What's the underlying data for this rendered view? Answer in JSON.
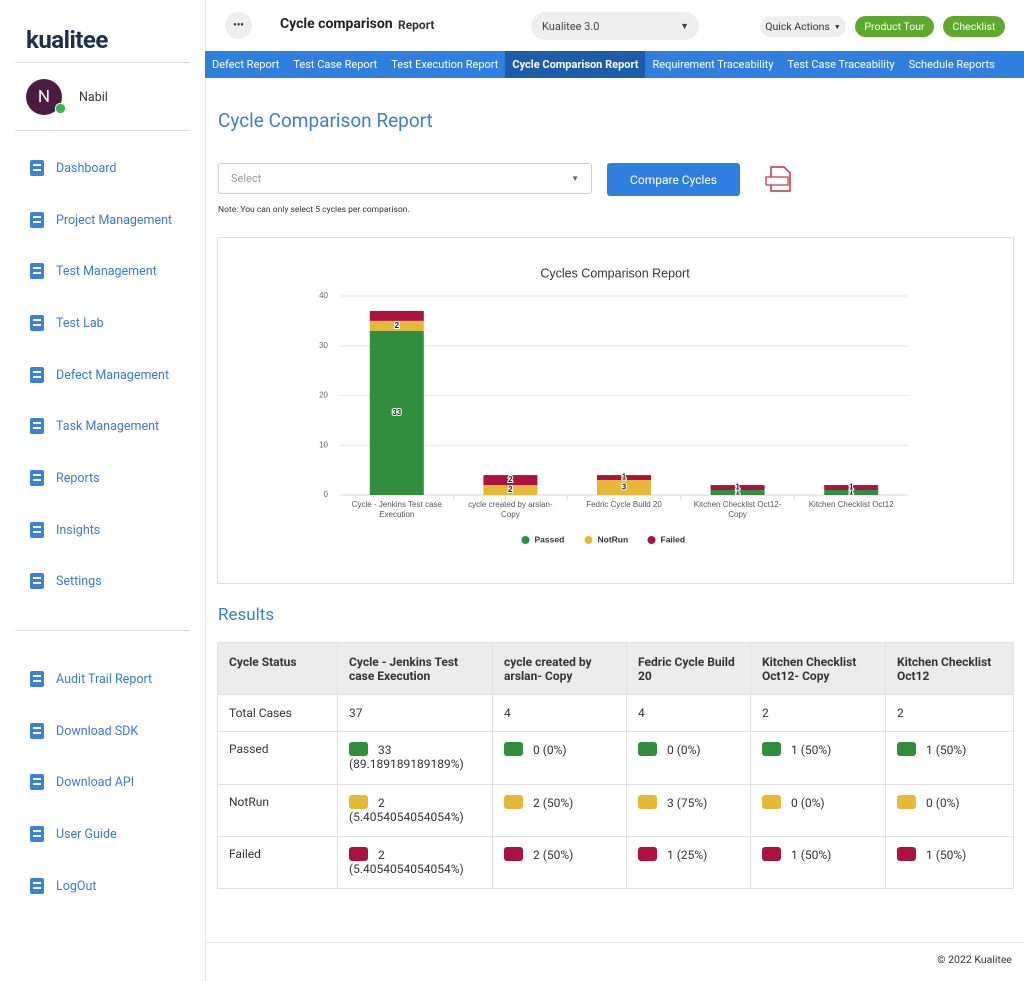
{
  "sidebar": {
    "logo": "kualitee",
    "user": {
      "initial": "N",
      "name": "Nabil"
    },
    "nav": [
      "Dashboard",
      "Project Management",
      "Test Management",
      "Test Lab",
      "Defect Management",
      "Task Management",
      "Reports",
      "Insights",
      "Settings"
    ],
    "bottom_nav": [
      "Audit Trail Report",
      "Download SDK",
      "Download API",
      "User Guide",
      "LogOut"
    ]
  },
  "topbar": {
    "title": "Cycle comparison",
    "subtitle": "Report",
    "project": "Kualitee 3.0",
    "quick_actions": "Quick Actions",
    "product_tour": "Product Tour",
    "checklist": "Checklist"
  },
  "tabs": {
    "items": [
      "Defect Report",
      "Test Case Report",
      "Test Execution Report",
      "Cycle Comparison Report",
      "Requirement Traceability",
      "Test Case Traceability",
      "Schedule Reports"
    ],
    "active": 3
  },
  "page": {
    "title": "Cycle Comparison Report",
    "select_placeholder": "Select",
    "compare_button": "Compare Cycles",
    "note": "Note: You can only select 5 cycles per comparison.",
    "results_title": "Results"
  },
  "chart_data": {
    "type": "bar",
    "stacked": true,
    "title": "Cycles Comparison Report",
    "categories": [
      "Cycle - Jenkins Test case Execution",
      "cycle created by arslan- Copy",
      "Fedric Cycle Build 20",
      "Kitchen Checklist Oct12- Copy",
      "Kitchen Checklist Oct12"
    ],
    "series": [
      {
        "name": "Passed",
        "color": "#2f8f3e",
        "values": [
          33,
          0,
          0,
          1,
          1
        ]
      },
      {
        "name": "NotRun",
        "color": "#e5b937",
        "values": [
          2,
          2,
          3,
          0,
          0
        ]
      },
      {
        "name": "Failed",
        "color": "#ac1240",
        "values": [
          2,
          2,
          1,
          1,
          1
        ]
      }
    ],
    "ylim": [
      0,
      40
    ],
    "yticks": [
      0,
      10,
      20,
      30,
      40
    ],
    "grid": true,
    "legend": "bottom"
  },
  "table": {
    "header": [
      "Cycle Status",
      "Cycle - Jenkins Test case Execution",
      "cycle created by arslan- Copy",
      "Fedric Cycle Build 20",
      "Kitchen Checklist Oct12- Copy",
      "Kitchen Checklist Oct12"
    ],
    "rows": [
      [
        "Total Cases",
        "37",
        "4",
        "4",
        "2",
        "2"
      ],
      [
        "Passed",
        "33 (89.189189189189%)",
        "0 (0%)",
        "0 (0%)",
        "1 (50%)",
        "1 (50%)"
      ],
      [
        "NotRun",
        "2 (5.4054054054054%)",
        "2 (50%)",
        "3 (75%)",
        "0 (0%)",
        "0 (0%)"
      ],
      [
        "Failed",
        "2 (5.4054054054054%)",
        "2 (50%)",
        "1 (25%)",
        "1 (50%)",
        "1 (50%)"
      ]
    ]
  },
  "footer": "© 2022 Kualitee"
}
